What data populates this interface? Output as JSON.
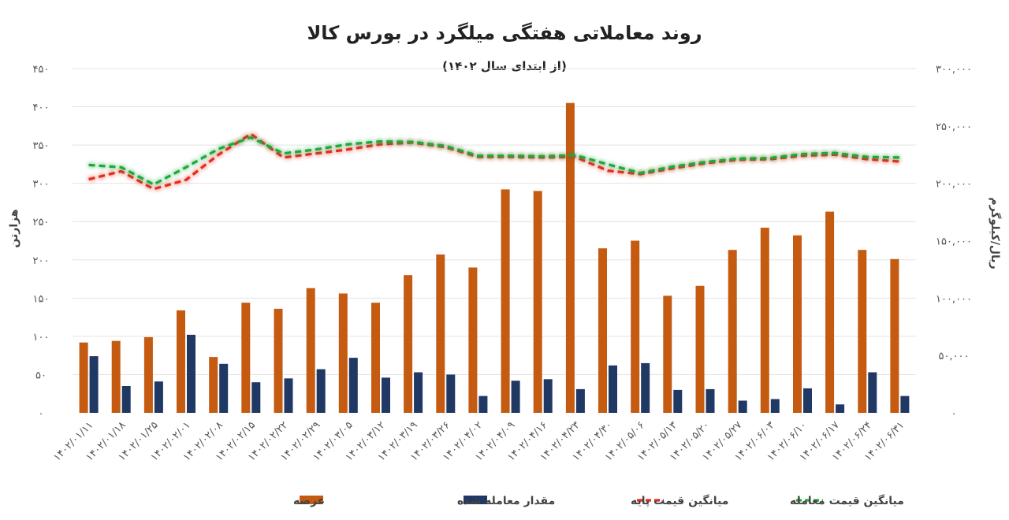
{
  "chart_data": {
    "type": "bar",
    "title": "روند معاملاتی هفتگی میلگرد در بورس کالا",
    "subtitle": "(از ابتدای سال ۱۴۰۲)",
    "ylabel_left": "هزارتن",
    "ylabel_right": "ریال/کیلوگرم",
    "ylim_left": [
      0,
      450
    ],
    "ylim_right": [
      0,
      300000
    ],
    "yticks_left": [
      "۰",
      "۵۰",
      "۱۰۰",
      "۱۵۰",
      "۲۰۰",
      "۲۵۰",
      "۳۰۰",
      "۳۵۰",
      "۴۰۰",
      "۴۵۰"
    ],
    "yticks_right": [
      "۰",
      "۵۰,۰۰۰",
      "۱۰۰,۰۰۰",
      "۱۵۰,۰۰۰",
      "۲۰۰,۰۰۰",
      "۲۵۰,۰۰۰",
      "۳۰۰,۰۰۰"
    ],
    "grid": true,
    "legend_position": "bottom",
    "categories": [
      "۱۴۰۲/۰۱/۱۱",
      "۱۴۰۲/۰۱/۱۸",
      "۱۴۰۲/۰۱/۲۵",
      "۱۴۰۲/۰۲/۰۱",
      "۱۴۰۲/۰۲/۰۸",
      "۱۴۰۲/۰۲/۱۵",
      "۱۴۰۲/۰۲/۲۲",
      "۱۴۰۲/۰۲/۲۹",
      "۱۴۰۲/۰۳/۰۵",
      "۱۴۰۲/۰۳/۱۲",
      "۱۴۰۲/۰۳/۱۹",
      "۱۴۰۲/۰۳/۲۶",
      "۱۴۰۲/۰۴/۰۲",
      "۱۴۰۲/۰۴/۰۹",
      "۱۴۰۲/۰۴/۱۶",
      "۱۴۰۲/۰۴/۲۳",
      "۱۴۰۲/۰۴/۳۰",
      "۱۴۰۲/۰۵/۰۶",
      "۱۴۰۲/۰۵/۱۳",
      "۱۴۰۲/۰۵/۲۰",
      "۱۴۰۲/۰۵/۲۷",
      "۱۴۰۲/۰۶/۰۳",
      "۱۴۰۲/۰۶/۱۰",
      "۱۴۰۲/۰۶/۱۷",
      "۱۴۰۲/۰۶/۲۴",
      "۱۴۰۲/۰۶/۳۱"
    ],
    "series": [
      {
        "name": "عرضه",
        "type": "bar",
        "axis": "left",
        "color": "#c55a11",
        "values": [
          92,
          94,
          99,
          134,
          73,
          144,
          136,
          163,
          156,
          144,
          180,
          207,
          190,
          292,
          290,
          405,
          215,
          225,
          153,
          166,
          213,
          242,
          232,
          263,
          213,
          201
        ]
      },
      {
        "name": "مقدار معامله شده",
        "type": "bar",
        "axis": "left",
        "color": "#203864",
        "values": [
          74,
          35,
          41,
          102,
          64,
          40,
          45,
          57,
          72,
          46,
          53,
          50,
          22,
          42,
          44,
          31,
          62,
          65,
          30,
          31,
          16,
          18,
          32,
          11,
          53,
          22
        ]
      },
      {
        "name": "میانگین قیمت پایه",
        "type": "line",
        "axis": "right",
        "color": "#e8291c",
        "dashed": true,
        "values": [
          203500,
          210500,
          195000,
          203000,
          225000,
          243000,
          222500,
          226000,
          229500,
          234000,
          235500,
          231500,
          223000,
          223000,
          222500,
          223000,
          211000,
          208000,
          213000,
          217500,
          220500,
          221000,
          224000,
          225000,
          221000,
          219000
        ]
      },
      {
        "name": "میانگین قیمت معامله",
        "type": "line",
        "axis": "right",
        "color": "#1aaa3a",
        "dashed": true,
        "values": [
          216000,
          214000,
          199000,
          214000,
          230000,
          240000,
          226000,
          229500,
          234000,
          236500,
          236000,
          232500,
          224000,
          224000,
          223500,
          224500,
          216500,
          209000,
          214500,
          218500,
          221500,
          222000,
          225500,
          226500,
          223000,
          222500
        ]
      }
    ]
  }
}
